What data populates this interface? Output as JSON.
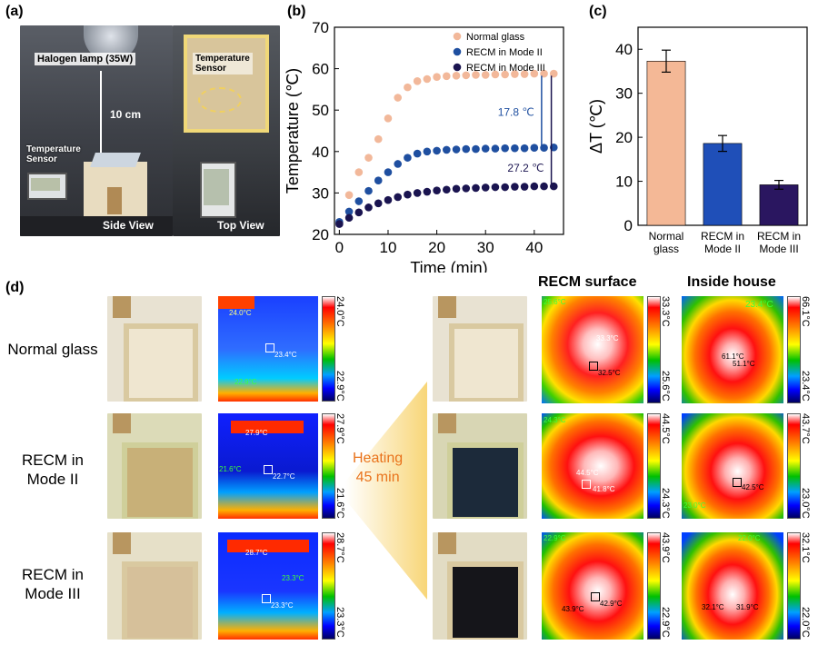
{
  "panels": {
    "a": "(a)",
    "b": "(b)",
    "c": "(c)",
    "d": "(d)"
  },
  "panel_a": {
    "lamp": "Halogen lamp (35W)",
    "distance": "10 cm",
    "sensor_left": "Temperature\nSensor",
    "sensor_top": "Temperature\nSensor",
    "side_view": "Side View",
    "top_view": "Top View"
  },
  "chart_data": [
    {
      "type": "scatter",
      "panel": "b",
      "xlabel": "Time (min)",
      "ylabel": "Temperature (℃)",
      "xlim": [
        -1,
        46
      ],
      "ylim": [
        20,
        70
      ],
      "xticks": [
        0,
        10,
        20,
        30,
        40
      ],
      "yticks": [
        20,
        30,
        40,
        50,
        60,
        70
      ],
      "series": [
        {
          "name": "Normal glass",
          "color": "#f2b89a",
          "x": [
            2,
            4,
            6,
            8,
            10,
            12,
            14,
            16,
            18,
            20,
            22,
            24,
            26,
            28,
            30,
            32,
            34,
            36,
            38,
            40,
            42,
            44
          ],
          "y": [
            29.5,
            35,
            38.5,
            43,
            48,
            53,
            55.5,
            57,
            57.5,
            58,
            58.2,
            58.3,
            58.4,
            58.5,
            58.5,
            58.6,
            58.6,
            58.7,
            58.7,
            58.8,
            58.8,
            58.8
          ]
        },
        {
          "name": "RECM in Mode II",
          "color": "#1f4fa0",
          "x": [
            0,
            2,
            4,
            6,
            8,
            10,
            12,
            14,
            16,
            18,
            20,
            22,
            24,
            26,
            28,
            30,
            32,
            34,
            36,
            38,
            40,
            42,
            44
          ],
          "y": [
            23,
            25.5,
            28,
            30.5,
            33,
            35,
            37,
            38.5,
            39.5,
            40,
            40.2,
            40.4,
            40.5,
            40.6,
            40.6,
            40.7,
            40.7,
            40.8,
            40.8,
            40.8,
            40.9,
            40.9,
            41
          ]
        },
        {
          "name": "RECM in Mode III",
          "color": "#1a1450",
          "x": [
            0,
            2,
            4,
            6,
            8,
            10,
            12,
            14,
            16,
            18,
            20,
            22,
            24,
            26,
            28,
            30,
            32,
            34,
            36,
            38,
            40,
            42,
            44
          ],
          "y": [
            22.5,
            24,
            25.3,
            26.5,
            27.5,
            28.3,
            29,
            29.6,
            30,
            30.3,
            30.6,
            30.8,
            31,
            31.1,
            31.2,
            31.3,
            31.4,
            31.4,
            31.5,
            31.5,
            31.6,
            31.6,
            31.6
          ]
        }
      ],
      "annotations": [
        "17.8 ℃",
        "27.2 ℃"
      ]
    },
    {
      "type": "bar",
      "panel": "c",
      "ylabel": "ΔT (℃)",
      "ylim": [
        0,
        45
      ],
      "yticks": [
        0,
        10,
        20,
        30,
        40
      ],
      "categories": [
        "Normal\nglass",
        "RECM in\nMode II",
        "RECM in\nMode III"
      ],
      "values": [
        37.3,
        18.6,
        9.2
      ],
      "errors": [
        2.5,
        1.8,
        1.0
      ],
      "colors": [
        "#f4b896",
        "#1f4fb8",
        "#2a1660"
      ]
    }
  ],
  "panel_d": {
    "rows": [
      "Normal glass",
      "RECM in\nMode II",
      "RECM in\nMode III"
    ],
    "center_label": "Heating\n45 min",
    "col_recm": "RECM surface",
    "col_inside": "Inside house",
    "left_thermal": [
      {
        "max": "24.0°C",
        "min": "22.9°C",
        "s1": "24.0°C",
        "s2": "23.4°C",
        "s3": "22.9°C"
      },
      {
        "max": "27.9°C",
        "min": "21.6°C",
        "s1": "27.9°C",
        "s2": "22.7°C",
        "s3": "21.6°C"
      },
      {
        "max": "28.7°C",
        "min": "23.3°C",
        "s1": "28.7°C",
        "s2": "23.3°C",
        "s3": "23.3°C"
      }
    ],
    "recm_thermal": [
      {
        "max": "33.3°C",
        "min": "25.6°C",
        "s1": "33.3°C",
        "s2": "32.5°C",
        "s3": "25.6°C"
      },
      {
        "max": "44.5°C",
        "min": "24.3°C",
        "s1": "44.5°C",
        "s2": "41.8°C",
        "s3": "24.3°C"
      },
      {
        "max": "43.9°C",
        "min": "22.9°C",
        "s1": "43.9°C",
        "s2": "42.9°C",
        "s3": "22.9°C"
      }
    ],
    "inside_thermal": [
      {
        "max": "66.1°C",
        "min": "23.4°C",
        "s1": "61.1°C",
        "s2": "51.1°C",
        "s3": "23.4°C"
      },
      {
        "max": "43.7°C",
        "min": "23.0°C",
        "s1": "42.5°C",
        "s2": "23.0°C"
      },
      {
        "max": "32.1°C",
        "min": "22.0°C",
        "s1": "32.1°C",
        "s2": "31.9°C",
        "s3": "22.0°C"
      }
    ]
  }
}
